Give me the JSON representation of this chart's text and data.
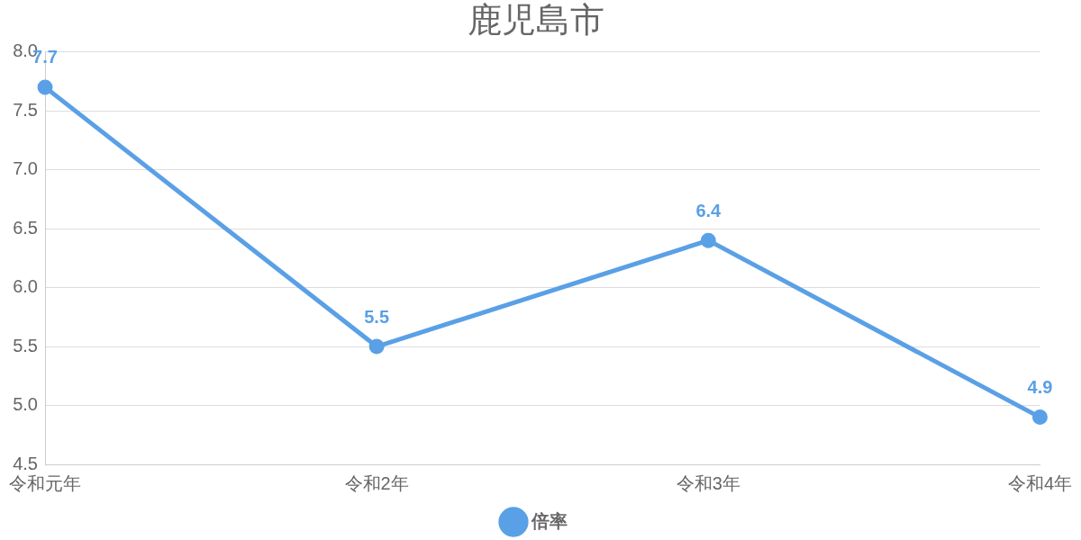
{
  "chart_data": {
    "type": "line",
    "title": "鹿児島市",
    "categories": [
      "令和元年",
      "令和2年",
      "令和3年",
      "令和4年"
    ],
    "series": [
      {
        "name": "倍率",
        "color": "#5aa0e6",
        "values": [
          7.7,
          5.5,
          6.4,
          4.9
        ]
      }
    ],
    "ylim": [
      4.5,
      8.0
    ],
    "yticks": [
      {
        "value": 4.5,
        "label": "4.5"
      },
      {
        "value": 5.0,
        "label": "5.0"
      },
      {
        "value": 5.5,
        "label": "5.5"
      },
      {
        "value": 6.0,
        "label": "6.0"
      },
      {
        "value": 6.5,
        "label": "6.5"
      },
      {
        "value": 7.0,
        "label": "7.0"
      },
      {
        "value": 7.5,
        "label": "7.5"
      },
      {
        "value": 8.0,
        "label": "8.0"
      }
    ],
    "grid": "y",
    "legend": "bottom",
    "marker": "circle",
    "line_style": "solid",
    "data_labels": true
  }
}
